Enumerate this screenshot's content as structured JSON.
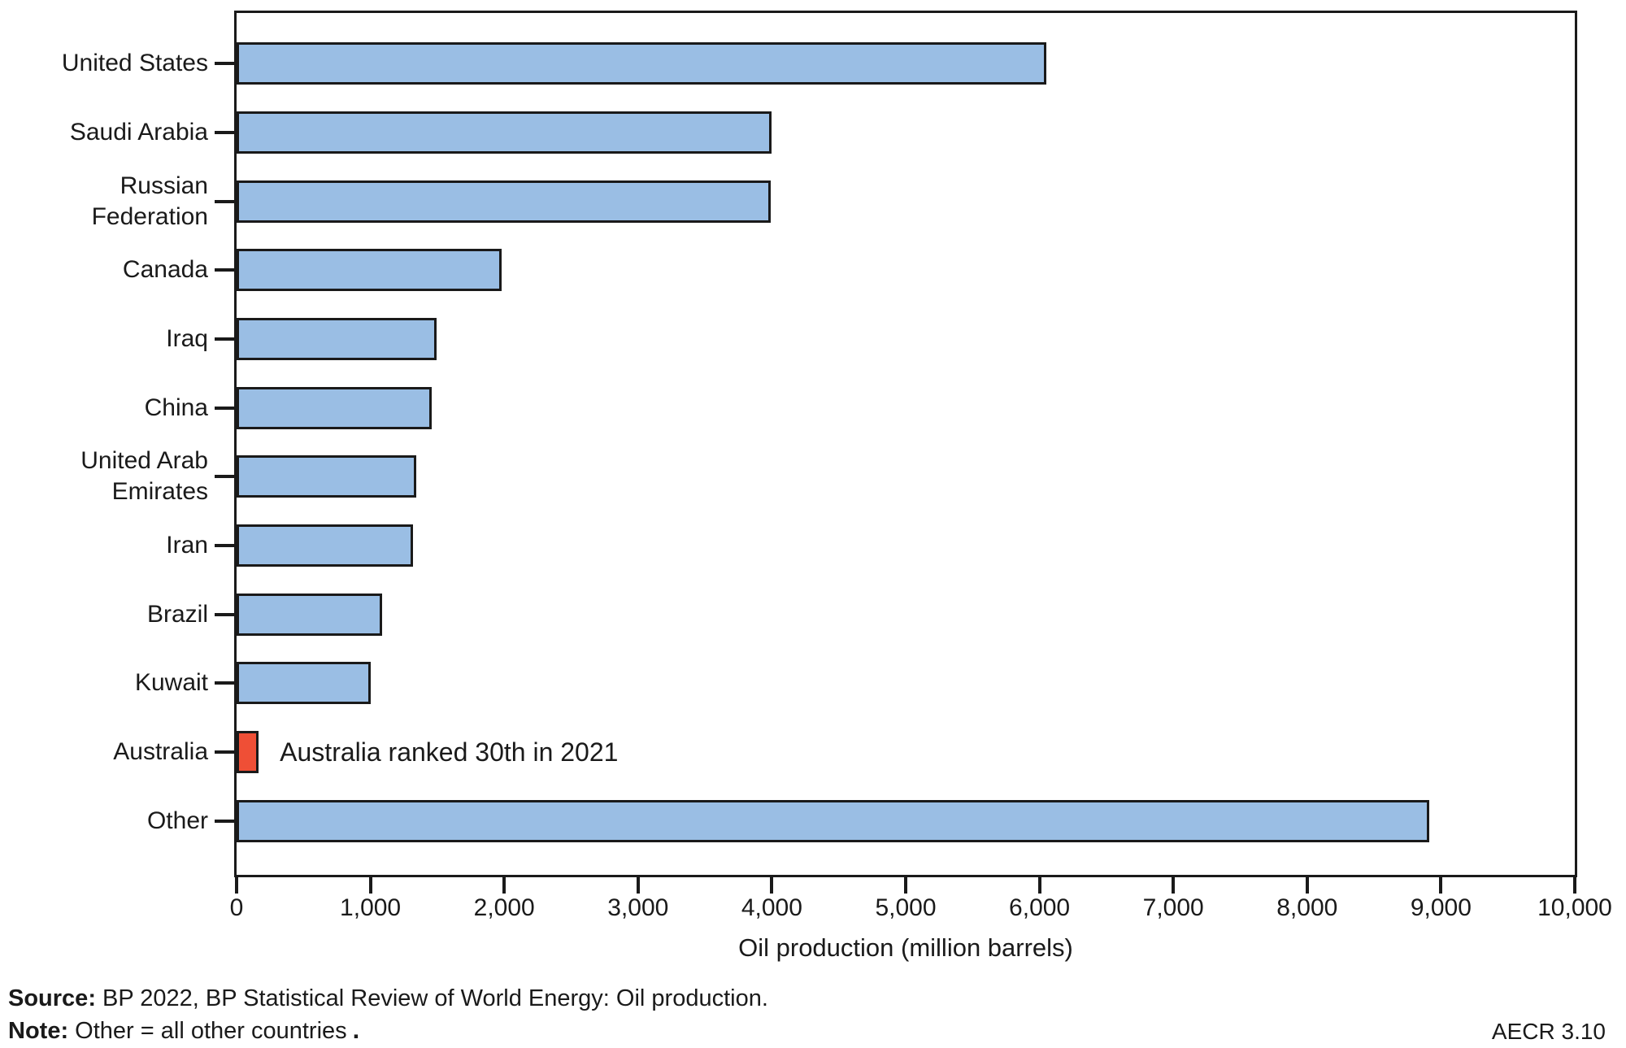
{
  "chart_data": {
    "type": "bar",
    "orientation": "horizontal",
    "categories": [
      "United States",
      "Saudi Arabia",
      "Russian Federation",
      "Canada",
      "Iraq",
      "China",
      "United Arab Emirates",
      "Iran",
      "Brazil",
      "Kuwait",
      "Australia",
      "Other"
    ],
    "values": [
      6050,
      4000,
      3990,
      1980,
      1495,
      1460,
      1340,
      1320,
      1090,
      1000,
      165,
      8910
    ],
    "xlabel": "Oil production (million barrels)",
    "xlim": [
      0,
      10000
    ],
    "xticks": [
      0,
      1000,
      2000,
      3000,
      4000,
      5000,
      6000,
      7000,
      8000,
      9000,
      10000
    ],
    "xtick_labels": [
      "0",
      "1,000",
      "2,000",
      "3,000",
      "4,000",
      "5,000",
      "6,000",
      "7,000",
      "8,000",
      "9,000",
      "10,000"
    ],
    "grid": false,
    "legend": "none",
    "bar_color": "#9ABEE4",
    "highlight_color": "#EF4F36",
    "highlight_index": 10,
    "bar_border_color": "#1a1a1a",
    "annotation": {
      "text": "Australia ranked 30th in 2021",
      "target": "Australia"
    }
  },
  "footer": {
    "source_label": "Source:",
    "source_text": " BP 2022, BP Statistical Review of World Energy: Oil production.",
    "note_label": "Note:",
    "note_text": " Other = all other countries",
    "note_period": ".",
    "figure_tag": "AECR 3.10"
  }
}
